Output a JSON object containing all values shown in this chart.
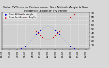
{
  "title": "Solar PV/Inverter Performance  Sun Altitude Angle & Sun Incidence Angle on PV Panels",
  "bg_color": "#d8d8d8",
  "grid_color": "#ffffff",
  "plot_bg": "#d0d0d0",
  "blue_color": "#0000cc",
  "red_color": "#cc0000",
  "ylim": [
    0,
    90
  ],
  "xlim": [
    0,
    23
  ],
  "x_ticks": [
    0,
    2,
    4,
    6,
    8,
    10,
    12,
    14,
    16,
    18,
    20,
    22
  ],
  "x_labels": [
    "00:00",
    "02:00",
    "04:00",
    "06:00",
    "08:00",
    "10:00",
    "12:00",
    "14:00",
    "16:00",
    "18:00",
    "20:00",
    "22:00"
  ],
  "y_ticks": [
    10,
    20,
    30,
    40,
    50,
    60,
    70,
    80,
    90
  ],
  "sun_altitude_x": [
    5,
    5.5,
    6,
    6.5,
    7,
    7.5,
    8,
    8.5,
    9,
    9.5,
    10,
    10.5,
    11,
    11.5,
    12,
    12.5,
    13,
    13.5,
    14,
    14.5,
    15,
    15.5,
    16,
    16.5,
    17,
    17.5,
    18,
    18.5,
    19
  ],
  "sun_altitude_y": [
    2,
    4,
    7,
    11,
    16,
    21,
    26,
    31,
    36,
    41,
    46,
    50,
    54,
    57,
    59,
    57,
    54,
    50,
    46,
    41,
    36,
    31,
    26,
    21,
    16,
    11,
    7,
    4,
    2
  ],
  "incidence_x": [
    5,
    5.5,
    6,
    6.5,
    7,
    7.5,
    8,
    8.5,
    9,
    9.5,
    10,
    10.5,
    11,
    11.5,
    12,
    12.5,
    13,
    13.5,
    14,
    14.5,
    15,
    15.5,
    16,
    16.5,
    17,
    17.5,
    18,
    18.5,
    19
  ],
  "incidence_y": [
    85,
    82,
    78,
    73,
    67,
    61,
    55,
    49,
    43,
    38,
    33,
    29,
    26,
    24,
    23,
    24,
    26,
    29,
    33,
    38,
    43,
    49,
    55,
    61,
    67,
    73,
    78,
    82,
    85
  ],
  "legend_blue": "Sun Altitude Angle",
  "legend_red": "Sun Incidence Angle",
  "title_fontsize": 3.2,
  "tick_fontsize": 2.8,
  "legend_fontsize": 2.8,
  "marker_size": 0.8
}
